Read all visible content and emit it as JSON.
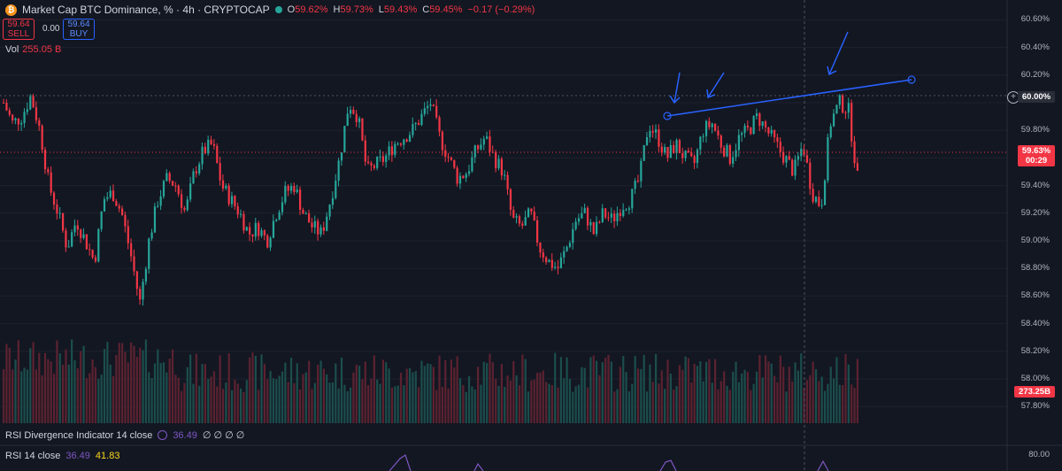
{
  "header": {
    "logo_glyph": "₿",
    "title": "Market Cap BTC Dominance, % · 4h · CRYPTOCAP",
    "ohlc": [
      {
        "k": "O",
        "v": "59.62%"
      },
      {
        "k": "H",
        "v": "59.73%"
      },
      {
        "k": "L",
        "v": "59.43%"
      },
      {
        "k": "C",
        "v": "59.45%"
      },
      {
        "k": "",
        "v": "−0.17 (−0.29%)"
      }
    ]
  },
  "trade": {
    "sell_price": "59.64",
    "sell_label": "SELL",
    "spread": "0.00",
    "buy_price": "59.64",
    "buy_label": "BUY"
  },
  "volume_row": {
    "label": "Vol",
    "value": "255.05 B"
  },
  "price_axis": {
    "ticks": [
      "60.60%",
      "60.40%",
      "60.20%",
      "60.00%",
      "59.80%",
      "59.60%",
      "59.40%",
      "59.20%",
      "59.00%",
      "58.80%",
      "58.60%",
      "58.40%",
      "58.20%",
      "58.00%",
      "57.80%"
    ],
    "level_tag": "60.00%",
    "current_price": "59.63%",
    "countdown": "00:29",
    "volume_tag": "273.25B"
  },
  "indicators": {
    "rsi_div_label": "RSI Divergence Indicator 14 close",
    "rsi_div_value": "36.49",
    "rsi_div_empty": "∅ ∅ ∅ ∅",
    "rsi_label": "RSI 14 close",
    "rsi_value": "36.49",
    "rsi_value2": "41.83",
    "rsi_axis_top": "80.00"
  },
  "colors": {
    "background": "#131722",
    "up": "#26a69a",
    "down": "#f23645",
    "drawing": "#2962ff",
    "grid": "#1e222d"
  },
  "chart_data": {
    "type": "candlestick",
    "timeframe": "4h",
    "ylim": [
      57.75,
      60.66
    ],
    "close_path": [
      60.0,
      59.85,
      59.9,
      60.05,
      59.8,
      59.4,
      59.2,
      58.95,
      59.15,
      59.0,
      58.85,
      59.3,
      59.35,
      59.2,
      58.9,
      58.55,
      59.0,
      59.3,
      59.45,
      59.4,
      59.2,
      59.5,
      59.65,
      59.7,
      59.4,
      59.3,
      59.2,
      59.05,
      59.1,
      59.0,
      59.2,
      59.35,
      59.4,
      59.2,
      59.1,
      59.05,
      59.3,
      59.6,
      60.0,
      59.9,
      59.5,
      59.55,
      59.6,
      59.7,
      59.75,
      59.8,
      59.9,
      60.0,
      59.75,
      59.6,
      59.45,
      59.5,
      59.65,
      59.75,
      59.6,
      59.5,
      59.15,
      59.1,
      59.2,
      58.95,
      58.85,
      58.8,
      58.95,
      59.15,
      59.2,
      59.05,
      59.2,
      59.15,
      59.25,
      59.3,
      59.45,
      59.85,
      59.75,
      59.6,
      59.7,
      59.6,
      59.55,
      59.8,
      59.85,
      59.7,
      59.6,
      59.75,
      59.8,
      59.9,
      59.8,
      59.7,
      59.6,
      59.5,
      59.7,
      59.35,
      59.25,
      59.85,
      60.0,
      59.95,
      59.45
    ],
    "annotations": [
      "resistance-trendline",
      "arrow-1",
      "arrow-2",
      "arrow-3"
    ]
  }
}
